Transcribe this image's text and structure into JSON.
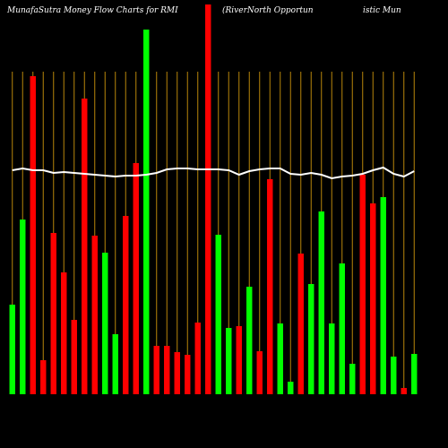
{
  "chart_data": {
    "type": "bar",
    "title": "MunafaSutra  Money Flow  Charts for RMI",
    "subtitle": "(RiverNorth Opportun",
    "subtitle_tail": "istic Mun",
    "categories": [
      null,
      null,
      null,
      null,
      null,
      null,
      null,
      null,
      null,
      null,
      null,
      null,
      null,
      null,
      null,
      null,
      null,
      null,
      null,
      null,
      null,
      null,
      null,
      null,
      null,
      null,
      null,
      null,
      null,
      null,
      null,
      null,
      null,
      null,
      null,
      null,
      null,
      null,
      null,
      null
    ],
    "values": [
      100,
      195,
      355,
      38,
      180,
      136,
      83,
      330,
      177,
      158,
      67,
      199,
      258,
      407,
      54,
      54,
      47,
      44,
      80,
      435,
      178,
      74,
      76,
      120,
      48,
      240,
      79,
      14,
      157,
      123,
      204,
      79,
      146,
      34,
      245,
      213,
      220,
      42,
      7,
      45
    ],
    "colors": [
      "#00ff00",
      "#00ff00",
      "#ff0000",
      "#ff0000",
      "#ff0000",
      "#ff0000",
      "#ff0000",
      "#ff0000",
      "#ff0000",
      "#00ff00",
      "#00ff00",
      "#ff0000",
      "#ff0000",
      "#00ff00",
      "#ff0000",
      "#ff0000",
      "#ff0000",
      "#ff0000",
      "#ff0000",
      "#ff0000",
      "#00ff00",
      "#00ff00",
      "#ff0000",
      "#00ff00",
      "#ff0000",
      "#ff0000",
      "#00ff00",
      "#00ff00",
      "#ff0000",
      "#00ff00",
      "#00ff00",
      "#00ff00",
      "#00ff00",
      "#00ff00",
      "#ff0000",
      "#ff0000",
      "#00ff00",
      "#00ff00",
      "#ff0000",
      "#00ff00"
    ],
    "line": {
      "color": "#ffffff",
      "values": [
        250,
        252,
        250,
        250,
        247,
        248,
        247,
        246,
        245,
        244,
        243,
        244,
        244,
        245,
        247,
        251,
        252,
        252,
        251,
        251,
        251,
        250,
        245,
        249,
        251,
        252,
        252,
        246,
        245,
        247,
        245,
        241,
        243,
        244,
        246,
        250,
        253,
        246,
        243,
        249
      ]
    },
    "ylim": [
      0,
      440
    ],
    "divider_color": "#b8860b"
  }
}
